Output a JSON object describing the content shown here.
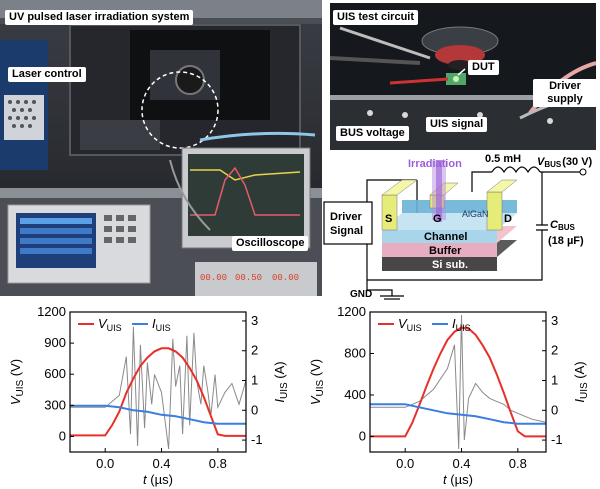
{
  "photo_left": {
    "labels": [
      "UV pulsed laser irradiation system",
      "Laser control",
      "Oscilloscope"
    ]
  },
  "photo_right": {
    "labels": [
      "UIS test circuit",
      "DUT",
      "Driver supply",
      "BUS voltage",
      "UIS signal"
    ]
  },
  "schematic": {
    "irradiation": "Irradiation",
    "inductor": "0.5 mH",
    "vbus_main": "V",
    "vbus_sub": "BUS",
    "vbus_value": "(30 V)",
    "driver_signal_1": "Driver",
    "driver_signal_2": "Signal",
    "s": "S",
    "g": "G",
    "d": "D",
    "algan": "AlGaN",
    "channel": "Channel",
    "buffer": "Buffer",
    "si_sub": "Si sub.",
    "cbus_main": "C",
    "cbus_sub": "BUS",
    "cbus_value": "(18 µF)",
    "gnd": "GND"
  },
  "colors": {
    "vuis": "#e8302a",
    "iuis": "#3a7ee0",
    "noisy": "#8a8a8a"
  },
  "chart_data": [
    {
      "type": "line",
      "title": "",
      "xlabel": "t (µs)",
      "ylabel_left_main": "V",
      "ylabel_left_sub": "UIS",
      "ylabel_left_unit": " (V)",
      "ylabel_right_main": "I",
      "ylabel_right_sub": "UIS",
      "ylabel_right_unit": " (A)",
      "xlim": [
        -0.25,
        1.0
      ],
      "ylim_left": [
        -150,
        1200
      ],
      "ylim_right": [
        -1.4,
        3.3
      ],
      "xticks": [
        "0.0",
        "0.4",
        "0.8"
      ],
      "xtick_values": [
        0.0,
        0.4,
        0.8
      ],
      "yticks_left": [
        "0",
        "300",
        "600",
        "900",
        "1200"
      ],
      "ytick_values_left": [
        0,
        300,
        600,
        900,
        1200
      ],
      "yticks_right": [
        "-1",
        "0",
        "1",
        "2",
        "3"
      ],
      "ytick_values_right": [
        -1,
        0,
        1,
        2,
        3
      ],
      "legend": [
        {
          "main": "V",
          "sub": "UIS"
        },
        {
          "main": "I",
          "sub": "UIS"
        }
      ],
      "series": [
        {
          "name": "VUIS",
          "axis": "left",
          "x": [
            -0.25,
            0.0,
            0.05,
            0.1,
            0.15,
            0.2,
            0.25,
            0.3,
            0.35,
            0.4,
            0.45,
            0.5,
            0.55,
            0.6,
            0.65,
            0.7,
            0.75,
            0.8,
            0.85,
            1.0
          ],
          "y": [
            10,
            10,
            110,
            240,
            420,
            560,
            680,
            760,
            820,
            850,
            850,
            820,
            760,
            660,
            540,
            380,
            200,
            20,
            5,
            5
          ]
        },
        {
          "name": "IUIS",
          "axis": "right",
          "x": [
            -0.25,
            0.0,
            0.1,
            0.2,
            0.3,
            0.4,
            0.5,
            0.6,
            0.7,
            0.8,
            0.9,
            1.0
          ],
          "y": [
            0.15,
            0.15,
            0.1,
            0.0,
            -0.05,
            -0.15,
            -0.2,
            -0.3,
            -0.4,
            -0.45,
            -0.45,
            -0.45
          ]
        },
        {
          "name": "IUIS-oscillation",
          "axis": "right",
          "x": [
            -0.25,
            0.0,
            0.1,
            0.15,
            0.18,
            0.2,
            0.23,
            0.25,
            0.28,
            0.3,
            0.33,
            0.35,
            0.4,
            0.45,
            0.48,
            0.5,
            0.53,
            0.55,
            0.58,
            0.6,
            0.63,
            0.65,
            0.68,
            0.7,
            0.73,
            0.75,
            0.78,
            0.8,
            0.85,
            0.9,
            0.95,
            1.0
          ],
          "y": [
            0.1,
            0.1,
            0.5,
            1.8,
            -0.8,
            2.8,
            -1.2,
            2.2,
            -0.6,
            1.6,
            0.2,
            1.2,
            0.6,
            -1.3,
            2.4,
            0.8,
            1.5,
            -0.8,
            2.5,
            -0.5,
            2.6,
            1.0,
            0.2,
            1.5,
            0.6,
            -0.2,
            1.2,
            0.1,
            0.6,
            0.9,
            0.2,
            1.0
          ]
        }
      ]
    },
    {
      "type": "line",
      "title": "",
      "xlabel": "t (µs)",
      "ylabel_left_main": "V",
      "ylabel_left_sub": "UIS",
      "ylabel_left_unit": " (V)",
      "ylabel_right_main": "I",
      "ylabel_right_sub": "UIS",
      "ylabel_right_unit": " (A)",
      "xlim": [
        -0.25,
        1.0
      ],
      "ylim_left": [
        -150,
        1200
      ],
      "ylim_right": [
        -1.4,
        3.3
      ],
      "xticks": [
        "0.0",
        "0.4",
        "0.8"
      ],
      "xtick_values": [
        0.0,
        0.4,
        0.8
      ],
      "yticks_left": [
        "0",
        "400",
        "800",
        "1200"
      ],
      "ytick_values_left": [
        0,
        400,
        800,
        1200
      ],
      "yticks_right": [
        "-1",
        "0",
        "1",
        "2",
        "3"
      ],
      "ytick_values_right": [
        -1,
        0,
        1,
        2,
        3
      ],
      "legend": [
        {
          "main": "V",
          "sub": "UIS"
        },
        {
          "main": "I",
          "sub": "UIS"
        }
      ],
      "series": [
        {
          "name": "VUIS",
          "axis": "left",
          "x": [
            -0.25,
            0.0,
            0.05,
            0.1,
            0.15,
            0.2,
            0.25,
            0.3,
            0.35,
            0.4,
            0.45,
            0.5,
            0.55,
            0.6,
            0.65,
            0.7,
            0.75,
            0.8,
            0.85,
            1.0
          ],
          "y": [
            0,
            0,
            130,
            300,
            480,
            650,
            800,
            930,
            1010,
            1050,
            1040,
            980,
            880,
            760,
            600,
            420,
            230,
            50,
            0,
            0
          ]
        },
        {
          "name": "IUIS",
          "axis": "right",
          "x": [
            -0.25,
            0.0,
            0.1,
            0.2,
            0.3,
            0.4,
            0.5,
            0.6,
            0.7,
            0.8,
            0.9,
            1.0
          ],
          "y": [
            0.2,
            0.2,
            0.1,
            0.0,
            -0.1,
            -0.15,
            -0.2,
            -0.3,
            -0.4,
            -0.45,
            -0.45,
            -0.45
          ]
        },
        {
          "name": "IUIS-oscillation",
          "axis": "right",
          "x": [
            -0.25,
            0.0,
            0.1,
            0.2,
            0.3,
            0.35,
            0.38,
            0.4,
            0.42,
            0.45,
            0.5,
            0.55,
            0.6,
            0.65,
            0.7,
            0.75,
            0.8,
            0.85,
            0.9,
            0.95,
            1.0
          ],
          "y": [
            0.1,
            0.1,
            0.3,
            0.7,
            1.4,
            2.2,
            -1.3,
            3.2,
            -1.0,
            0.4,
            0.9,
            0.6,
            0.4,
            0.3,
            0.2,
            0.0,
            -0.1,
            -0.2,
            -0.3,
            -0.35,
            -0.4
          ]
        }
      ]
    }
  ]
}
